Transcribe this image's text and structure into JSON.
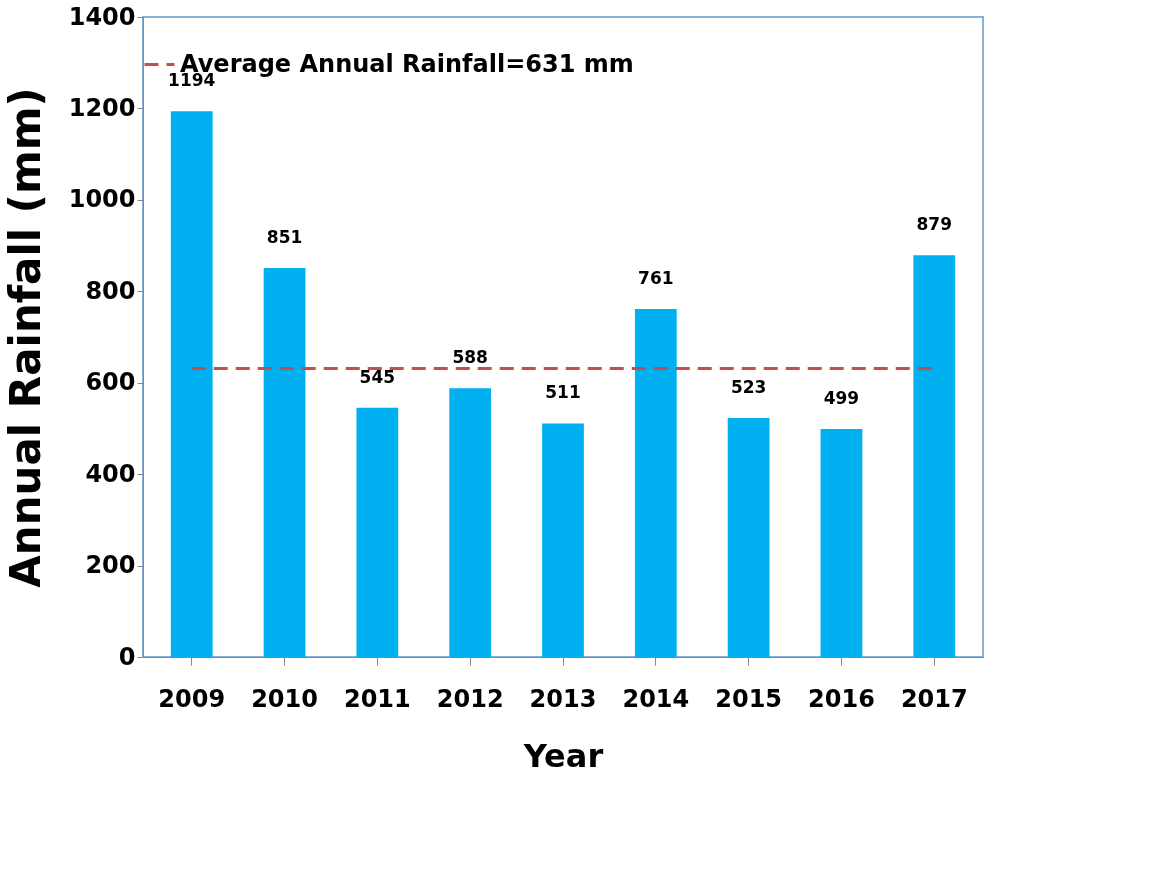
{
  "chart_data": {
    "type": "bar",
    "xlabel": "Year",
    "ylabel": "Annual Rainfall (mm)",
    "categories": [
      "2009",
      "2010",
      "2011",
      "2012",
      "2013",
      "2014",
      "2015",
      "2016",
      "2017"
    ],
    "values": [
      1194,
      851,
      545,
      588,
      511,
      761,
      523,
      499,
      879
    ],
    "color": "#00b0f0",
    "data_labels": true,
    "ylim": [
      0,
      1400
    ],
    "yticks": [
      0,
      200,
      400,
      600,
      800,
      1000,
      1200,
      1400
    ],
    "grid": false,
    "legend": "top",
    "ref_lines": [
      {
        "axis": "y",
        "value": 631,
        "label": "Average Annual Rainfall=631 mm",
        "color": "#c0504d",
        "line_style": "dashed"
      }
    ]
  }
}
